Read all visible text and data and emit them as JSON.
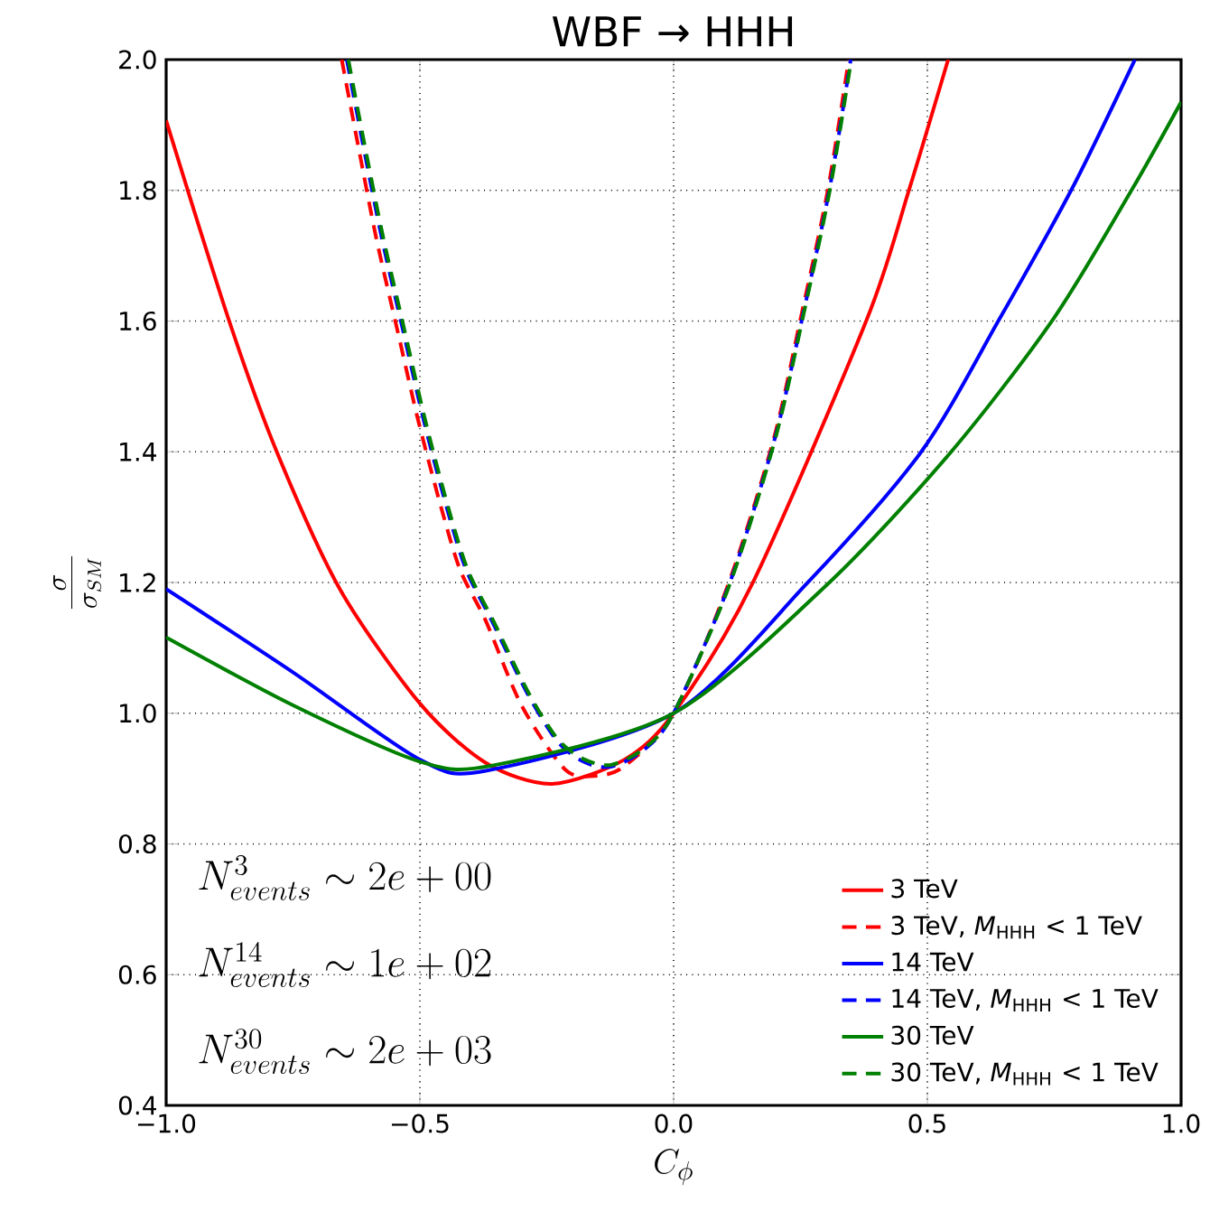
{
  "chart_data": {
    "type": "line",
    "title": "WBF → HHH",
    "xlabel": "C_\\phi",
    "ylabel": "\\frac{\\sigma}{\\sigma_{SM}}",
    "xlim": [
      -1,
      1
    ],
    "ylim": [
      0.4,
      2.0
    ],
    "xticks": [
      {
        "value": -1,
        "label": "−1.0"
      },
      {
        "value": -0.5,
        "label": "−0.5"
      },
      {
        "value": 0,
        "label": "0.0"
      },
      {
        "value": 0.5,
        "label": "0.5"
      },
      {
        "value": 1,
        "label": "1.0"
      }
    ],
    "yticks": [
      {
        "value": 0.4,
        "label": "0.4"
      },
      {
        "value": 0.6,
        "label": "0.6"
      },
      {
        "value": 0.8,
        "label": "0.8"
      },
      {
        "value": 1.0,
        "label": "1.0"
      },
      {
        "value": 1.2,
        "label": "1.2"
      },
      {
        "value": 1.4,
        "label": "1.4"
      },
      {
        "value": 1.6,
        "label": "1.6"
      },
      {
        "value": 1.8,
        "label": "1.8"
      },
      {
        "value": 2.0,
        "label": "2.0"
      }
    ],
    "grid": true,
    "legend": "bottom right",
    "series": [
      {
        "name": "3 TeV",
        "color": "#ff0000",
        "line_style": "solid",
        "x": [
          -1.0,
          -0.877,
          -0.782,
          -0.657,
          -0.5,
          -0.37,
          -0.24,
          -0.097,
          0,
          0.155,
          0.381,
          0.464,
          0.541
        ],
        "values": [
          1.907,
          1.603,
          1.4,
          1.189,
          1.015,
          0.924,
          0.892,
          0.929,
          1.0,
          1.198,
          1.603,
          1.801,
          2.0
        ]
      },
      {
        "name": "3 TeV, *M*$_{HHH}$ < 1 TeV",
        "color": "#ff0000",
        "line_style": "dashed",
        "x": [
          -0.654,
          -0.622,
          -0.586,
          -0.544,
          -0.503,
          -0.456,
          -0.42,
          -0.37,
          -0.299,
          -0.214,
          -0.157,
          -0.097,
          0,
          0.108,
          0.197,
          0.25,
          0.304,
          0.345
        ],
        "values": [
          2.0,
          1.87,
          1.727,
          1.585,
          1.447,
          1.309,
          1.218,
          1.141,
          1.011,
          0.914,
          0.904,
          0.919,
          1.0,
          1.198,
          1.419,
          1.603,
          1.801,
          2.0
        ]
      },
      {
        "name": "14 TeV",
        "color": "#0000ff",
        "line_style": "solid",
        "x": [
          -1.0,
          -0.747,
          -0.5,
          -0.37,
          0,
          0.262,
          0.488,
          0.642,
          0.784,
          0.909
        ],
        "values": [
          1.19,
          1.061,
          0.929,
          0.912,
          1.0,
          1.198,
          1.4,
          1.603,
          1.801,
          2.0
        ]
      },
      {
        "name": "14 TeV, *M*$_{HHH}$ < 1 TeV",
        "color": "#0000ff",
        "line_style": "dashed",
        "x": [
          -0.644,
          -0.612,
          -0.575,
          -0.533,
          -0.492,
          -0.445,
          -0.408,
          -0.358,
          -0.288,
          -0.23,
          -0.178,
          -0.125,
          -0.06,
          0,
          0.11,
          0.199,
          0.253,
          0.307,
          0.349
        ],
        "values": [
          2.0,
          1.87,
          1.727,
          1.585,
          1.447,
          1.309,
          1.218,
          1.141,
          1.03,
          0.958,
          0.926,
          0.918,
          0.943,
          1.0,
          1.198,
          1.419,
          1.603,
          1.801,
          2.0
        ]
      },
      {
        "name": "30 TeV",
        "color": "#008000",
        "line_style": "solid",
        "x": [
          -1.0,
          -0.747,
          -0.5,
          -0.357,
          0,
          0.304,
          0.547,
          0.748,
          0.903,
          1.0
        ],
        "values": [
          1.116,
          1.011,
          0.926,
          0.92,
          1.0,
          1.198,
          1.4,
          1.603,
          1.801,
          1.935
        ]
      },
      {
        "name": "30 TeV, *M*$_{HHH}$ < 1 TeV",
        "color": "#008000",
        "line_style": "dashed",
        "x": [
          -0.641,
          -0.609,
          -0.572,
          -0.53,
          -0.489,
          -0.442,
          -0.405,
          -0.355,
          -0.285,
          -0.228,
          -0.175,
          -0.123,
          -0.06,
          0,
          0.111,
          0.2,
          0.254,
          0.308,
          0.35
        ],
        "values": [
          2.0,
          1.87,
          1.727,
          1.585,
          1.447,
          1.309,
          1.218,
          1.141,
          1.03,
          0.96,
          0.929,
          0.921,
          0.945,
          1.0,
          1.198,
          1.419,
          1.603,
          1.801,
          2.0
        ]
      }
    ],
    "annotations": [
      "N^{3}_{events} \\sim 2e+00",
      "N^{14}_{events} \\sim 1e+02",
      "N^{30}_{events} \\sim 2e+03"
    ]
  }
}
